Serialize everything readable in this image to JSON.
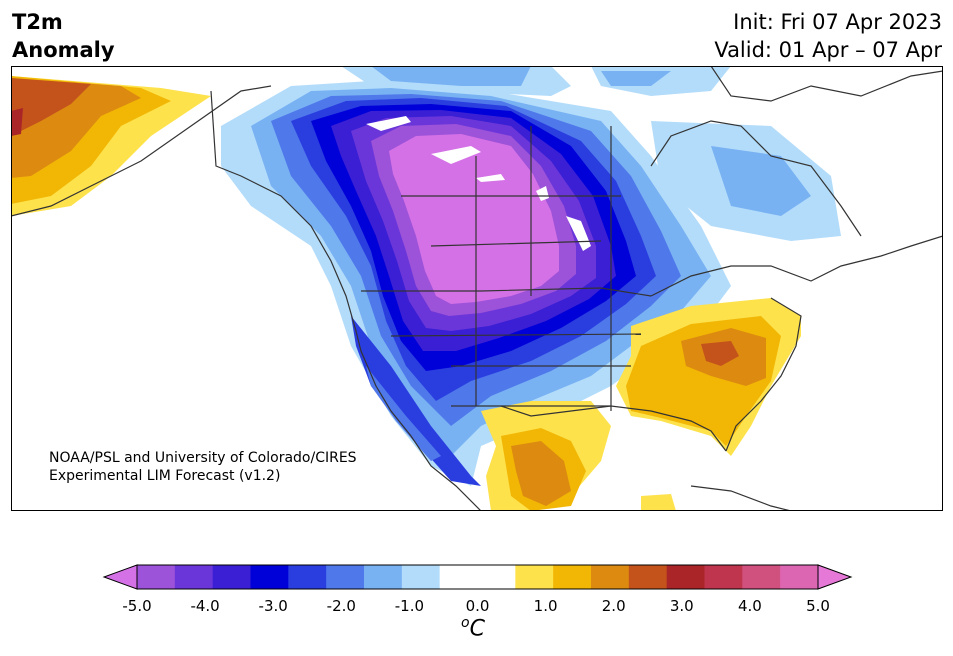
{
  "header": {
    "title_line1": "T2m",
    "title_line2": "Anomaly",
    "init": "Init: Fri 07 Apr 2023",
    "valid": "Valid: 01 Apr – 07 Apr"
  },
  "credit": {
    "line1": "NOAA/PSL and University of Colorado/CIRES",
    "line2": "Experimental LIM Forecast (v1.2)"
  },
  "colorbar": {
    "ticks": [
      "-5.0",
      "-4.0",
      "-3.0",
      "-2.0",
      "-1.0",
      "0.0",
      "1.0",
      "2.0",
      "3.0",
      "4.0",
      "5.0"
    ],
    "units_base": "C",
    "units_sup": "o",
    "colors": [
      "#d571e6",
      "#9c52d9",
      "#6b36d9",
      "#3a1fd4",
      "#0000d8",
      "#2a3ee0",
      "#4f78eb",
      "#79b2f3",
      "#b2dcfa",
      "#ffffff",
      "#ffffff",
      "#fde24c",
      "#f2b705",
      "#dd8a10",
      "#c4531b",
      "#aa2527",
      "#bf354d",
      "#d1517e",
      "#dd66b3",
      "#e678d7"
    ]
  },
  "map_colors": {
    "land_neutral": "#ffffff",
    "cold_core": "#d571e6",
    "cold_2": "#9c52d9",
    "cold_3": "#6b36d9",
    "cold_4": "#3a1fd4",
    "cold_5": "#0000d8",
    "cold_6": "#2a3ee0",
    "cold_7": "#4f78eb",
    "cold_8": "#79b2f3",
    "cold_9": "#b2dcfa",
    "warm_1": "#fde24c",
    "warm_2": "#f2b705",
    "warm_3": "#dd8a10",
    "warm_4": "#c4531b",
    "warm_5": "#aa2527",
    "boundary": "#333333"
  }
}
